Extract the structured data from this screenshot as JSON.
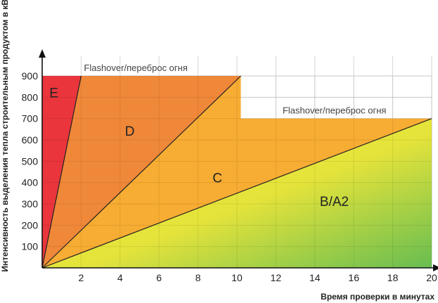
{
  "chart_data": {
    "type": "area",
    "xlabel": "Время проверки в минутах",
    "ylabel": "Интенсивность выделения тепла  строительным продуктом в кВт",
    "xlim": [
      0,
      20
    ],
    "ylim": [
      0,
      900
    ],
    "xticks": [
      2,
      4,
      6,
      8,
      10,
      12,
      14,
      16,
      18,
      20
    ],
    "yticks": [
      100,
      200,
      300,
      400,
      500,
      600,
      700,
      800,
      900
    ],
    "grid": true,
    "zones": [
      {
        "name": "E",
        "color": "#e8262d",
        "polygon": [
          [
            0,
            0
          ],
          [
            0,
            900
          ],
          [
            2,
            900
          ]
        ]
      },
      {
        "name": "D",
        "color": "#ef7f2a",
        "polygon": [
          [
            0,
            0
          ],
          [
            2,
            900
          ],
          [
            10.2,
            900
          ]
        ]
      },
      {
        "name": "C",
        "color": "#f6a623",
        "polygon": [
          [
            0,
            0
          ],
          [
            10.2,
            900
          ],
          [
            10.2,
            700
          ],
          [
            20,
            700
          ]
        ]
      },
      {
        "name": "B/A2",
        "gradient": [
          "#f4ef2a",
          "#5cb844"
        ],
        "polygon": [
          [
            0,
            0
          ],
          [
            20,
            700
          ],
          [
            20,
            0
          ]
        ]
      }
    ],
    "zone_labels": [
      {
        "text": "E",
        "x": 0.6,
        "y": 800
      },
      {
        "text": "D",
        "x": 4.5,
        "y": 620
      },
      {
        "text": "C",
        "x": 9,
        "y": 400
      },
      {
        "text": "B/A2",
        "x": 15,
        "y": 290
      }
    ],
    "annotations": [
      {
        "text": "Flashover/переброс огня",
        "x": 2,
        "y": 900
      },
      {
        "text": "Flashover/переброс огня",
        "x": 12.2,
        "y": 700
      }
    ]
  }
}
